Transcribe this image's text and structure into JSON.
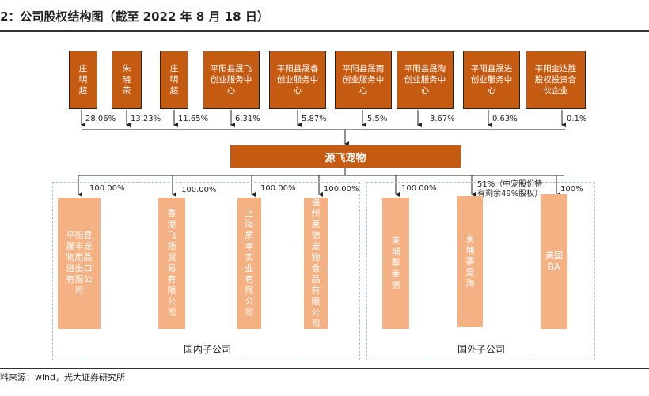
{
  "title": "2：公司股权结构图（截至 2022 年 8 月 18 日）",
  "source": "料来源：wind，光大证券研究所",
  "colors": {
    "shareholder_fill": "#c55a11",
    "main_fill": "#c55a11",
    "subsidiary_fill": "#f4b183",
    "group_border": "#9dc3e6"
  },
  "shareholders": [
    {
      "name": "庄明超",
      "vertical": true,
      "pct": "28.06%"
    },
    {
      "name": "朱晓荣",
      "vertical": true,
      "pct": "13.23%"
    },
    {
      "name": "庄明超",
      "vertical": true,
      "pct": "11.65%"
    },
    {
      "name": "平阳县晟飞创业服务中心",
      "vertical": false,
      "pct": "6.31%"
    },
    {
      "name": "平阳县晟睿创业服务中心",
      "vertical": false,
      "pct": "5.87%"
    },
    {
      "name": "平阳县晟雨创业服务中心",
      "vertical": false,
      "pct": "5.5%"
    },
    {
      "name": "平阳县晟淘创业服务中心",
      "vertical": false,
      "pct": "3.67%"
    },
    {
      "name": "平阳县晟进创业服务中心",
      "vertical": false,
      "pct": "0.63%"
    },
    {
      "name": "平阳金达胜股权投资合伙企业",
      "vertical": false,
      "pct": "0.1%"
    }
  ],
  "company": "源飞宠物",
  "domestic": {
    "label": "国内子公司",
    "subs": [
      {
        "name": "平阳县晟丰宠物用品进出口有限公司",
        "pct": "100.00%"
      },
      {
        "name": "香港飞扬贸易有限公司",
        "pct": "100.00%"
      },
      {
        "name": "上海质孝实业有限公司",
        "pct": "100.00%"
      },
      {
        "name": "温州莱德宠物食品有限公司",
        "pct": "100.00%"
      }
    ]
  },
  "foreign": {
    "label": "国外子公司",
    "subs": [
      {
        "name": "柬埔寨莱德",
        "pct": "100.00%"
      },
      {
        "name": "柬埔寨爱淘",
        "pct": "51%（中宠股份持有剩余49%股权）"
      },
      {
        "name": "美国BA",
        "pct": "100%"
      }
    ]
  }
}
